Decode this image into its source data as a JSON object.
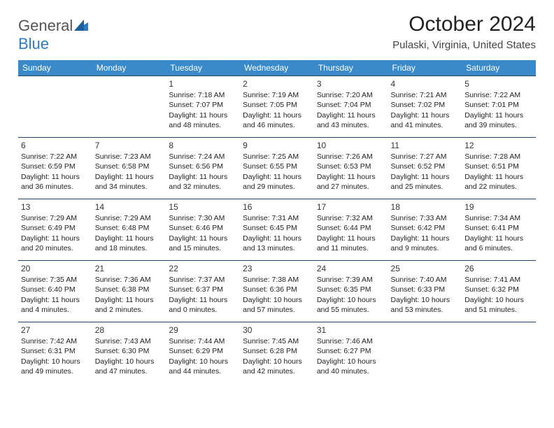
{
  "brand": {
    "part1": "General",
    "part2": "Blue"
  },
  "title": "October 2024",
  "location": "Pulaski, Virginia, United States",
  "colors": {
    "header_bg": "#3a8ac9",
    "header_text": "#ffffff",
    "row_border": "#2e6ea0",
    "logo_gray": "#555555",
    "logo_blue": "#2f7bbf"
  },
  "day_headers": [
    "Sunday",
    "Monday",
    "Tuesday",
    "Wednesday",
    "Thursday",
    "Friday",
    "Saturday"
  ],
  "weeks": [
    [
      null,
      null,
      {
        "n": "1",
        "sr": "Sunrise: 7:18 AM",
        "ss": "Sunset: 7:07 PM",
        "d1": "Daylight: 11 hours",
        "d2": "and 48 minutes."
      },
      {
        "n": "2",
        "sr": "Sunrise: 7:19 AM",
        "ss": "Sunset: 7:05 PM",
        "d1": "Daylight: 11 hours",
        "d2": "and 46 minutes."
      },
      {
        "n": "3",
        "sr": "Sunrise: 7:20 AM",
        "ss": "Sunset: 7:04 PM",
        "d1": "Daylight: 11 hours",
        "d2": "and 43 minutes."
      },
      {
        "n": "4",
        "sr": "Sunrise: 7:21 AM",
        "ss": "Sunset: 7:02 PM",
        "d1": "Daylight: 11 hours",
        "d2": "and 41 minutes."
      },
      {
        "n": "5",
        "sr": "Sunrise: 7:22 AM",
        "ss": "Sunset: 7:01 PM",
        "d1": "Daylight: 11 hours",
        "d2": "and 39 minutes."
      }
    ],
    [
      {
        "n": "6",
        "sr": "Sunrise: 7:22 AM",
        "ss": "Sunset: 6:59 PM",
        "d1": "Daylight: 11 hours",
        "d2": "and 36 minutes."
      },
      {
        "n": "7",
        "sr": "Sunrise: 7:23 AM",
        "ss": "Sunset: 6:58 PM",
        "d1": "Daylight: 11 hours",
        "d2": "and 34 minutes."
      },
      {
        "n": "8",
        "sr": "Sunrise: 7:24 AM",
        "ss": "Sunset: 6:56 PM",
        "d1": "Daylight: 11 hours",
        "d2": "and 32 minutes."
      },
      {
        "n": "9",
        "sr": "Sunrise: 7:25 AM",
        "ss": "Sunset: 6:55 PM",
        "d1": "Daylight: 11 hours",
        "d2": "and 29 minutes."
      },
      {
        "n": "10",
        "sr": "Sunrise: 7:26 AM",
        "ss": "Sunset: 6:53 PM",
        "d1": "Daylight: 11 hours",
        "d2": "and 27 minutes."
      },
      {
        "n": "11",
        "sr": "Sunrise: 7:27 AM",
        "ss": "Sunset: 6:52 PM",
        "d1": "Daylight: 11 hours",
        "d2": "and 25 minutes."
      },
      {
        "n": "12",
        "sr": "Sunrise: 7:28 AM",
        "ss": "Sunset: 6:51 PM",
        "d1": "Daylight: 11 hours",
        "d2": "and 22 minutes."
      }
    ],
    [
      {
        "n": "13",
        "sr": "Sunrise: 7:29 AM",
        "ss": "Sunset: 6:49 PM",
        "d1": "Daylight: 11 hours",
        "d2": "and 20 minutes."
      },
      {
        "n": "14",
        "sr": "Sunrise: 7:29 AM",
        "ss": "Sunset: 6:48 PM",
        "d1": "Daylight: 11 hours",
        "d2": "and 18 minutes."
      },
      {
        "n": "15",
        "sr": "Sunrise: 7:30 AM",
        "ss": "Sunset: 6:46 PM",
        "d1": "Daylight: 11 hours",
        "d2": "and 15 minutes."
      },
      {
        "n": "16",
        "sr": "Sunrise: 7:31 AM",
        "ss": "Sunset: 6:45 PM",
        "d1": "Daylight: 11 hours",
        "d2": "and 13 minutes."
      },
      {
        "n": "17",
        "sr": "Sunrise: 7:32 AM",
        "ss": "Sunset: 6:44 PM",
        "d1": "Daylight: 11 hours",
        "d2": "and 11 minutes."
      },
      {
        "n": "18",
        "sr": "Sunrise: 7:33 AM",
        "ss": "Sunset: 6:42 PM",
        "d1": "Daylight: 11 hours",
        "d2": "and 9 minutes."
      },
      {
        "n": "19",
        "sr": "Sunrise: 7:34 AM",
        "ss": "Sunset: 6:41 PM",
        "d1": "Daylight: 11 hours",
        "d2": "and 6 minutes."
      }
    ],
    [
      {
        "n": "20",
        "sr": "Sunrise: 7:35 AM",
        "ss": "Sunset: 6:40 PM",
        "d1": "Daylight: 11 hours",
        "d2": "and 4 minutes."
      },
      {
        "n": "21",
        "sr": "Sunrise: 7:36 AM",
        "ss": "Sunset: 6:38 PM",
        "d1": "Daylight: 11 hours",
        "d2": "and 2 minutes."
      },
      {
        "n": "22",
        "sr": "Sunrise: 7:37 AM",
        "ss": "Sunset: 6:37 PM",
        "d1": "Daylight: 11 hours",
        "d2": "and 0 minutes."
      },
      {
        "n": "23",
        "sr": "Sunrise: 7:38 AM",
        "ss": "Sunset: 6:36 PM",
        "d1": "Daylight: 10 hours",
        "d2": "and 57 minutes."
      },
      {
        "n": "24",
        "sr": "Sunrise: 7:39 AM",
        "ss": "Sunset: 6:35 PM",
        "d1": "Daylight: 10 hours",
        "d2": "and 55 minutes."
      },
      {
        "n": "25",
        "sr": "Sunrise: 7:40 AM",
        "ss": "Sunset: 6:33 PM",
        "d1": "Daylight: 10 hours",
        "d2": "and 53 minutes."
      },
      {
        "n": "26",
        "sr": "Sunrise: 7:41 AM",
        "ss": "Sunset: 6:32 PM",
        "d1": "Daylight: 10 hours",
        "d2": "and 51 minutes."
      }
    ],
    [
      {
        "n": "27",
        "sr": "Sunrise: 7:42 AM",
        "ss": "Sunset: 6:31 PM",
        "d1": "Daylight: 10 hours",
        "d2": "and 49 minutes."
      },
      {
        "n": "28",
        "sr": "Sunrise: 7:43 AM",
        "ss": "Sunset: 6:30 PM",
        "d1": "Daylight: 10 hours",
        "d2": "and 47 minutes."
      },
      {
        "n": "29",
        "sr": "Sunrise: 7:44 AM",
        "ss": "Sunset: 6:29 PM",
        "d1": "Daylight: 10 hours",
        "d2": "and 44 minutes."
      },
      {
        "n": "30",
        "sr": "Sunrise: 7:45 AM",
        "ss": "Sunset: 6:28 PM",
        "d1": "Daylight: 10 hours",
        "d2": "and 42 minutes."
      },
      {
        "n": "31",
        "sr": "Sunrise: 7:46 AM",
        "ss": "Sunset: 6:27 PM",
        "d1": "Daylight: 10 hours",
        "d2": "and 40 minutes."
      },
      null,
      null
    ]
  ]
}
